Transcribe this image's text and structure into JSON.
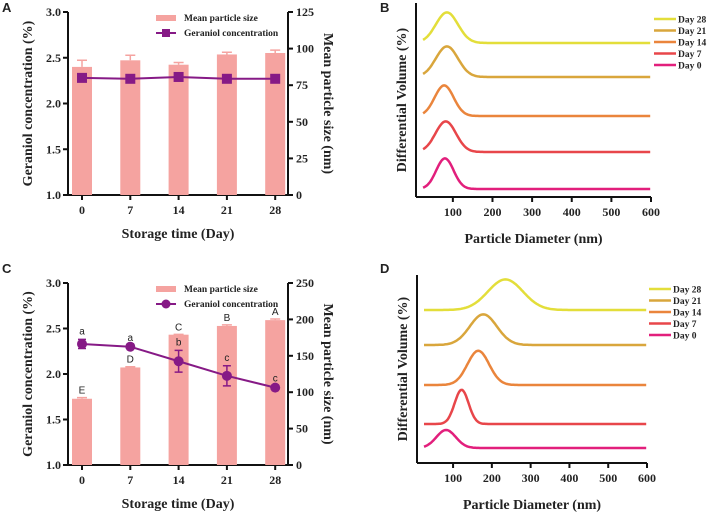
{
  "colors": {
    "bar": "#f5a3a0",
    "line": "#861a86",
    "axis": "#111111"
  },
  "chart_data": [
    {
      "panel": "A",
      "type": "bar+line",
      "xlabel": "Storage time (Day)",
      "ylabel": "Geraniol concentration (%)",
      "y2label": "Mean particle size (nm)",
      "categories": [
        "0",
        "7",
        "14",
        "21",
        "28"
      ],
      "ylim": [
        1.0,
        3.0
      ],
      "yticks": [
        "1.0",
        "1.5",
        "2.0",
        "2.5",
        "3.0"
      ],
      "y2lim": [
        0,
        125
      ],
      "y2ticks": [
        "0",
        "25",
        "50",
        "75",
        "100",
        "125"
      ],
      "marker": "square",
      "series": [
        {
          "name": "Mean particle size",
          "type": "bar",
          "axis": "right",
          "values": [
            87.5,
            92,
            89,
            96,
            97
          ],
          "errors": [
            4.5,
            3.5,
            1.5,
            1.5,
            2
          ]
        },
        {
          "name": "Geraniol concentration",
          "type": "line",
          "axis": "left",
          "values": [
            2.28,
            2.27,
            2.29,
            2.27,
            2.27
          ],
          "errors": [
            0.03,
            0.01,
            0.01,
            0.01,
            0.01
          ]
        }
      ],
      "bar_letters": [],
      "line_letters": []
    },
    {
      "panel": "C",
      "type": "bar+line",
      "xlabel": "Storage time (Day)",
      "ylabel": "Geraniol concentration (%)",
      "y2label": "Mean particle size (nm)",
      "categories": [
        "0",
        "7",
        "14",
        "21",
        "28"
      ],
      "ylim": [
        1.0,
        3.0
      ],
      "yticks": [
        "1.0",
        "1.5",
        "2.0",
        "2.5",
        "3.0"
      ],
      "y2lim": [
        0,
        250
      ],
      "y2ticks": [
        "0",
        "50",
        "100",
        "150",
        "200",
        "250"
      ],
      "marker": "circle",
      "series": [
        {
          "name": "Mean particle size",
          "type": "bar",
          "axis": "right",
          "values": [
            91,
            134,
            179,
            191,
            199
          ],
          "errors": [
            1.5,
            1,
            0.5,
            1.5,
            1.5
          ]
        },
        {
          "name": "Geraniol concentration",
          "type": "line",
          "axis": "left",
          "values": [
            2.33,
            2.3,
            2.14,
            1.98,
            1.85
          ],
          "errors": [
            0.05,
            0.01,
            0.12,
            0.11,
            0.01
          ]
        }
      ],
      "bar_letters": [
        "E",
        "D",
        "C",
        "B",
        "A"
      ],
      "line_letters": [
        "a",
        "a",
        "b",
        "c",
        "c"
      ]
    },
    {
      "panel": "B",
      "type": "line",
      "xlabel": "Particle Diameter (nm)",
      "ylabel": "Differential Volume (%)",
      "xlim": [
        7,
        600
      ],
      "xticks": [
        "100",
        "200",
        "300",
        "400",
        "500",
        "600"
      ],
      "series": [
        {
          "name": "Day 0",
          "color": "#e21f7c",
          "peak_nm": 80,
          "rel_height": 0.85,
          "width_nm": 22
        },
        {
          "name": "Day 7",
          "color": "#e8464a",
          "peak_nm": 82,
          "rel_height": 0.85,
          "width_nm": 26
        },
        {
          "name": "Day 14",
          "color": "#ea853c",
          "peak_nm": 78,
          "rel_height": 0.85,
          "width_nm": 24
        },
        {
          "name": "Day 21",
          "color": "#d9a63c",
          "peak_nm": 85,
          "rel_height": 0.85,
          "width_nm": 28
        },
        {
          "name": "Day 28",
          "color": "#e3de3a",
          "peak_nm": 85,
          "rel_height": 0.85,
          "width_nm": 28
        }
      ]
    },
    {
      "panel": "D",
      "type": "line",
      "xlabel": "Particle Diameter (nm)",
      "ylabel": "Differential Volume (%)",
      "xlim": [
        7,
        600
      ],
      "xticks": [
        "100",
        "200",
        "300",
        "400",
        "500",
        "600"
      ],
      "series": [
        {
          "name": "Day 0",
          "color": "#e21f7c",
          "peak_nm": 82,
          "rel_height": 0.5,
          "width_nm": 25
        },
        {
          "name": "Day 7",
          "color": "#e8464a",
          "peak_nm": 122,
          "rel_height": 0.95,
          "width_nm": 18
        },
        {
          "name": "Day 14",
          "color": "#ea853c",
          "peak_nm": 165,
          "rel_height": 0.95,
          "width_nm": 28
        },
        {
          "name": "Day 21",
          "color": "#d9a63c",
          "peak_nm": 178,
          "rel_height": 0.85,
          "width_nm": 35
        },
        {
          "name": "Day 28",
          "color": "#e3de3a",
          "peak_nm": 235,
          "rel_height": 0.85,
          "width_nm": 45
        }
      ]
    }
  ]
}
